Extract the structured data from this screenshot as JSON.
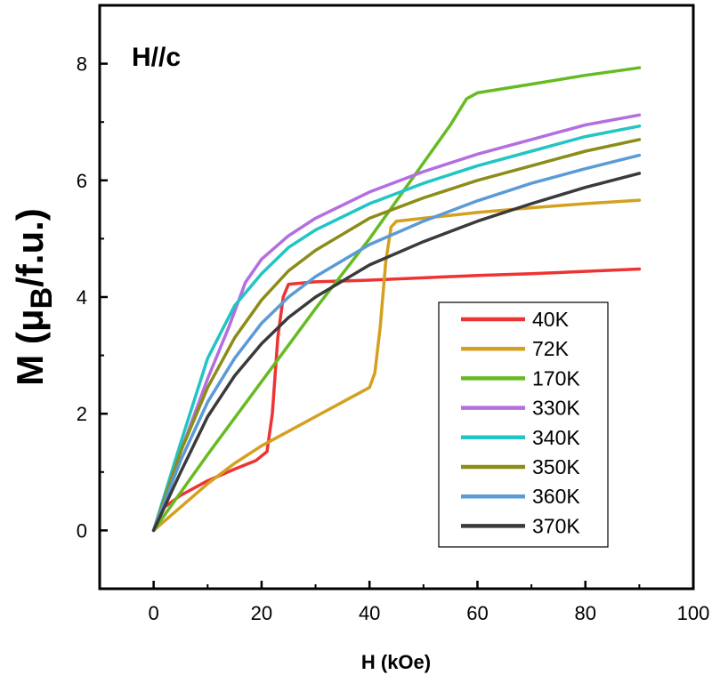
{
  "chart_data": {
    "type": "line",
    "panel_label": "H//c",
    "xlabel": "H (kOe)",
    "ylabel_parts": {
      "main": "M (μ",
      "sub": "B",
      "tail": "/f.u.)"
    },
    "xlim": [
      -10,
      100
    ],
    "ylim": [
      -1,
      9
    ],
    "xticks": [
      0,
      20,
      40,
      60,
      80,
      100
    ],
    "yticks": [
      0,
      2,
      4,
      6,
      8
    ],
    "legend_position": "center-right",
    "series": [
      {
        "name": "40K",
        "color": "#ee3333",
        "x": [
          0,
          2,
          5,
          10,
          15,
          19,
          21,
          22,
          23,
          24,
          25,
          30,
          40,
          50,
          60,
          70,
          80,
          90
        ],
        "y": [
          0,
          0.4,
          0.6,
          0.85,
          1.05,
          1.2,
          1.35,
          2.0,
          3.3,
          4.0,
          4.22,
          4.26,
          4.29,
          4.33,
          4.37,
          4.4,
          4.44,
          4.48
        ]
      },
      {
        "name": "72K",
        "color": "#d4a020",
        "x": [
          0,
          5,
          10,
          15,
          20,
          25,
          30,
          35,
          40,
          41,
          42,
          43,
          44,
          45,
          50,
          60,
          70,
          80,
          90
        ],
        "y": [
          0,
          0.4,
          0.8,
          1.15,
          1.45,
          1.7,
          1.95,
          2.2,
          2.45,
          2.7,
          3.5,
          4.6,
          5.2,
          5.3,
          5.35,
          5.45,
          5.53,
          5.6,
          5.66
        ]
      },
      {
        "name": "170K",
        "color": "#66bb22",
        "x": [
          0,
          10,
          20,
          30,
          40,
          50,
          55,
          58,
          60,
          70,
          80,
          90
        ],
        "y": [
          0,
          1.3,
          2.55,
          3.8,
          5.0,
          6.3,
          6.95,
          7.4,
          7.5,
          7.65,
          7.8,
          7.93
        ]
      },
      {
        "name": "330K",
        "color": "#b36ee0",
        "x": [
          0,
          5,
          10,
          14,
          17,
          20,
          25,
          30,
          40,
          50,
          60,
          70,
          80,
          90
        ],
        "y": [
          0,
          1.35,
          2.6,
          3.5,
          4.25,
          4.65,
          5.05,
          5.35,
          5.8,
          6.15,
          6.45,
          6.7,
          6.95,
          7.12
        ]
      },
      {
        "name": "340K",
        "color": "#22c4c4",
        "x": [
          0,
          5,
          10,
          15,
          20,
          25,
          30,
          40,
          50,
          60,
          70,
          80,
          90
        ],
        "y": [
          0,
          1.5,
          2.95,
          3.85,
          4.4,
          4.85,
          5.15,
          5.6,
          5.95,
          6.25,
          6.5,
          6.75,
          6.93
        ]
      },
      {
        "name": "350K",
        "color": "#8c8c18",
        "x": [
          0,
          5,
          10,
          15,
          20,
          25,
          30,
          40,
          50,
          60,
          70,
          80,
          90
        ],
        "y": [
          0,
          1.35,
          2.45,
          3.3,
          3.95,
          4.45,
          4.8,
          5.35,
          5.7,
          6.0,
          6.25,
          6.5,
          6.7
        ]
      },
      {
        "name": "360K",
        "color": "#5b9bd5",
        "x": [
          0,
          5,
          10,
          15,
          20,
          25,
          30,
          40,
          50,
          60,
          70,
          80,
          90
        ],
        "y": [
          0,
          1.2,
          2.2,
          2.95,
          3.55,
          4.0,
          4.35,
          4.9,
          5.3,
          5.65,
          5.95,
          6.2,
          6.43
        ]
      },
      {
        "name": "370K",
        "color": "#3a3a3a",
        "x": [
          0,
          5,
          10,
          15,
          20,
          25,
          30,
          40,
          50,
          60,
          70,
          80,
          90
        ],
        "y": [
          0,
          1.0,
          1.95,
          2.65,
          3.2,
          3.65,
          4.0,
          4.55,
          4.95,
          5.3,
          5.6,
          5.88,
          6.12
        ]
      }
    ]
  }
}
